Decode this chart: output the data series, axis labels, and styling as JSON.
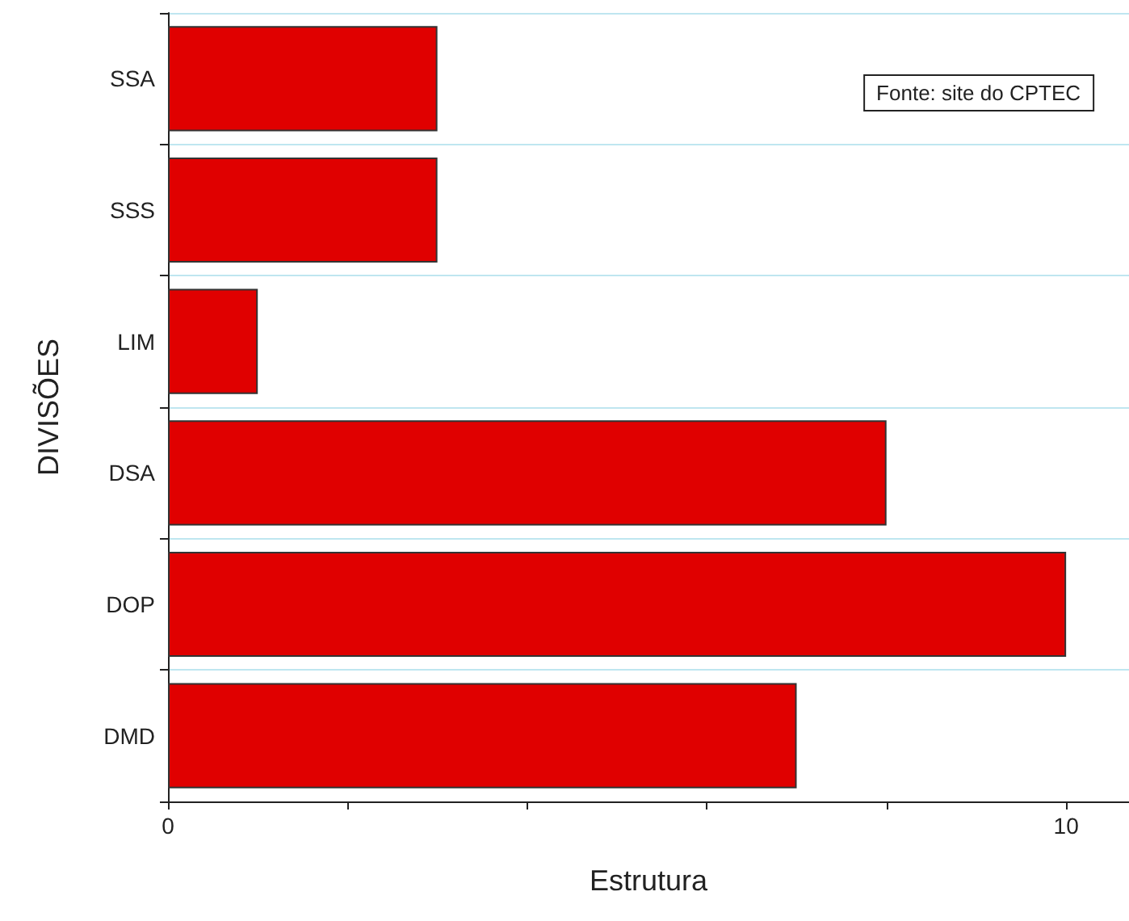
{
  "chart_data": {
    "type": "bar",
    "orientation": "horizontal",
    "categories": [
      "SSA",
      "SSS",
      "LIM",
      "DSA",
      "DOP",
      "DMD"
    ],
    "values": [
      3,
      3,
      1,
      8,
      10,
      7
    ],
    "color": "#e00000",
    "xlim": [
      0,
      10.7
    ],
    "xticks": [
      0,
      {
        "value": 2,
        "label": null
      },
      {
        "value": 4,
        "label": null
      },
      {
        "value": 6,
        "label": null
      },
      {
        "value": 8,
        "label": null
      },
      10
    ],
    "xlabel": "Estrutura",
    "ylabel": "DIVISÕES",
    "annotations": [
      "Fonte: site do CPTEC"
    ],
    "grid": "y"
  }
}
